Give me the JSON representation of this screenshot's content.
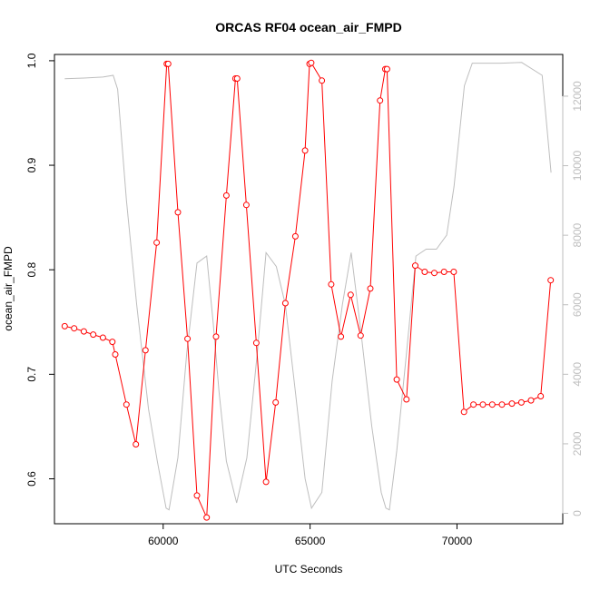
{
  "chart_data": {
    "type": "line",
    "title": "ORCAS RF04 ocean_air_FMPD",
    "xlabel": "UTC Seconds",
    "ylabel": "ocean_air_FMPD",
    "xlim": [
      56300,
      73600
    ],
    "ylim": [
      0.557,
      1.006
    ],
    "y2lim": [
      -300,
      13200
    ],
    "xticks": [
      60000,
      65000,
      70000
    ],
    "xtick_labels": [
      "60000",
      "65000",
      "70000"
    ],
    "yticks": [
      0.6,
      0.7,
      0.8,
      0.9,
      1.0
    ],
    "ytick_labels": [
      "0.6",
      "0.7",
      "0.8",
      "0.9",
      "1.0"
    ],
    "y2ticks": [
      0,
      2000,
      4000,
      6000,
      8000,
      10000,
      12000
    ],
    "y2tick_labels": [
      "0",
      "2000",
      "4000",
      "6000",
      "8000",
      "10000",
      "12000"
    ],
    "grid": false,
    "series": [
      {
        "axis": "left",
        "color": "#ff0000",
        "style": "line-with-open-circles",
        "x": [
          56650,
          56970,
          57300,
          57620,
          57950,
          58270,
          58370,
          58750,
          59070,
          59400,
          59780,
          60120,
          60170,
          60500,
          60830,
          61150,
          61480,
          61800,
          62150,
          62460,
          62520,
          62830,
          63170,
          63500,
          63830,
          64160,
          64500,
          64830,
          64980,
          65040,
          65400,
          65720,
          66050,
          66380,
          66720,
          67050,
          67380,
          67560,
          67620,
          67950,
          68280,
          68580,
          68900,
          69230,
          69560,
          69890,
          70240,
          70560,
          70880,
          71200,
          71530,
          71870,
          72190,
          72520,
          72850,
          73190
        ],
        "y": [
          0.746,
          0.744,
          0.741,
          0.738,
          0.735,
          0.731,
          0.719,
          0.671,
          0.633,
          0.723,
          0.826,
          0.997,
          0.997,
          0.855,
          0.734,
          0.584,
          0.563,
          0.736,
          0.871,
          0.983,
          0.983,
          0.862,
          0.73,
          0.597,
          0.673,
          0.768,
          0.832,
          0.914,
          0.997,
          0.998,
          0.981,
          0.786,
          0.736,
          0.776,
          0.737,
          0.782,
          0.962,
          0.992,
          0.992,
          0.695,
          0.676,
          0.804,
          0.798,
          0.797,
          0.798,
          0.798,
          0.664,
          0.671,
          0.671,
          0.671,
          0.671,
          0.672,
          0.673,
          0.675,
          0.679,
          0.79
        ]
      },
      {
        "axis": "right",
        "color": "#bebebe",
        "style": "line",
        "x": [
          56650,
          57300,
          57950,
          58300,
          58450,
          58750,
          59100,
          59500,
          59800,
          60100,
          60200,
          60500,
          60800,
          61150,
          61480,
          61700,
          61900,
          62150,
          62500,
          62850,
          63200,
          63500,
          63850,
          64160,
          64500,
          64830,
          65050,
          65400,
          65750,
          66100,
          66400,
          66720,
          67100,
          67420,
          67580,
          67700,
          67950,
          68280,
          68600,
          68950,
          69300,
          69650,
          69900,
          70250,
          70520,
          71500,
          72200,
          72900,
          73200
        ],
        "y": [
          12500,
          12520,
          12550,
          12600,
          12200,
          9000,
          6000,
          3000,
          1500,
          150,
          100,
          1600,
          4600,
          7200,
          7400,
          5500,
          3500,
          1500,
          300,
          1600,
          4600,
          7500,
          7100,
          6000,
          3500,
          1000,
          150,
          600,
          3800,
          6000,
          7500,
          5300,
          2500,
          600,
          150,
          100,
          1800,
          4600,
          7400,
          7600,
          7600,
          8000,
          9400,
          12300,
          12950,
          12950,
          12970,
          12600,
          9800
        ]
      }
    ]
  }
}
